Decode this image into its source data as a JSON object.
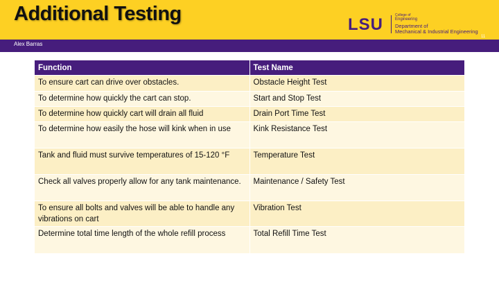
{
  "header": {
    "title": "Additional Testing",
    "author": "Alex Barras",
    "slide_number": "11"
  },
  "logo": {
    "mark": "LSU",
    "lines": [
      "College of",
      "Engineering",
      "Department of",
      "Mechanical & Industrial Engineering"
    ]
  },
  "table": {
    "columns": [
      "Function",
      "Test Name"
    ],
    "rows": [
      [
        "To ensure cart can drive over obstacles.",
        "Obstacle Height Test"
      ],
      [
        "To determine how quickly the cart can stop.",
        "Start and Stop Test"
      ],
      [
        "To determine how quickly cart will drain all fluid",
        "Drain Port Time Test"
      ],
      [
        "To determine how easily the hose will kink when in use",
        "Kink Resistance Test"
      ],
      [
        "Tank and fluid must survive temperatures of 15-120 °F",
        "Temperature Test"
      ],
      [
        "Check all valves properly allow for any tank maintenance.",
        "Maintenance / Safety Test"
      ],
      [
        "To ensure all bolts and valves will be able to handle any vibrations on cart",
        "Vibration Test"
      ],
      [
        "Determine total time length of the whole refill process",
        "Total Refill Time Test"
      ]
    ]
  }
}
